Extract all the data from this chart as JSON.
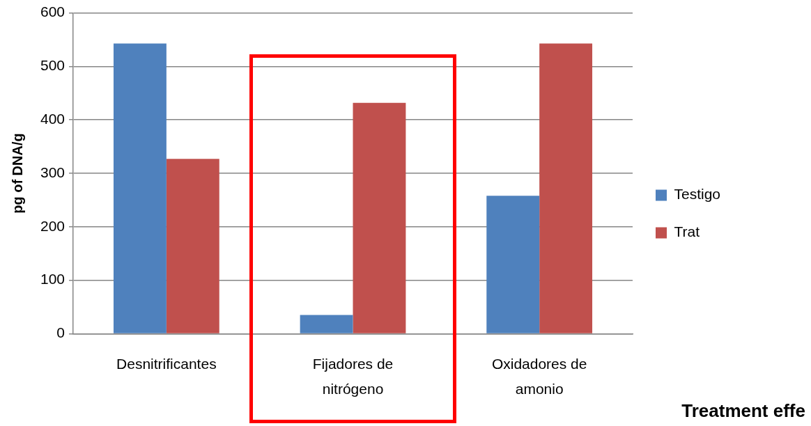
{
  "chart_data": {
    "type": "bar",
    "categories": [
      "Desnitrificantes",
      "Fijadores de nitrógeno",
      "Oxidadores de amonio"
    ],
    "series": [
      {
        "name": "Testigo",
        "color": "#4f81bd",
        "values": [
          543,
          35,
          258
        ]
      },
      {
        "name": "Trat",
        "color": "#c0504d",
        "values": [
          327,
          432,
          543
        ]
      }
    ],
    "ylabel": "pg of DNA/g",
    "ylim": [
      0,
      600
    ],
    "yticks": [
      0,
      100,
      200,
      300,
      400,
      500,
      600
    ],
    "grid": "y",
    "legend": "right",
    "annotations": [
      "Treatment effe"
    ]
  }
}
